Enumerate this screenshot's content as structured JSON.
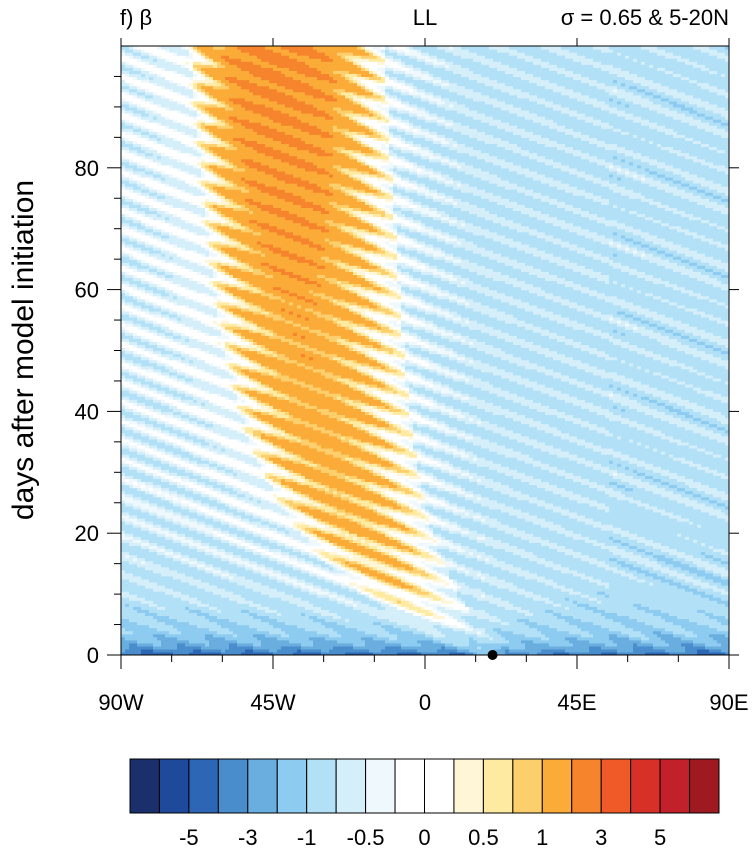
{
  "chart_data": {
    "type": "heatmap",
    "panel_label": "f) β",
    "center_title": "LL",
    "right_title": "σ  = 0.65 & 5-20N",
    "ylabel": "days after model initiation",
    "xlabel": "",
    "x_ticks": [
      "90W",
      "45W",
      "0",
      "45E",
      "90E"
    ],
    "x_tick_values": [
      -90,
      -45,
      0,
      45,
      90
    ],
    "y_ticks": [
      "0",
      "20",
      "40",
      "60",
      "80"
    ],
    "y_tick_values": [
      0,
      20,
      40,
      60,
      80
    ],
    "xlim": [
      -90,
      90
    ],
    "ylim": [
      0,
      100
    ],
    "contour_levels": [
      -7,
      -6,
      -5,
      -4,
      -3,
      -2,
      -1,
      -0.5,
      -0.25,
      0,
      0.25,
      0.5,
      0.75,
      1,
      2,
      3,
      4,
      5,
      6,
      7
    ],
    "colorbar_labels": [
      "-5",
      "-3",
      "-1",
      "-0.5",
      "0",
      "0.5",
      "1",
      "3",
      "5"
    ],
    "colorbar_colors": [
      "#1a2f6b",
      "#1f4a9b",
      "#2d66b5",
      "#4a8dcc",
      "#6aaee0",
      "#8ecbf0",
      "#b2e0f6",
      "#d4eefa",
      "#eef8fd",
      "#ffffff",
      "#ffffff",
      "#fff6d8",
      "#feeaa0",
      "#fdcf6c",
      "#fbab38",
      "#f6842c",
      "#ef5a28",
      "#d73027",
      "#c2202a",
      "#9e1a20"
    ],
    "colors": {
      "strong_negative": "#2d66b5",
      "negative": "#6aaee0",
      "weak_negative": "#8ecbf0",
      "neutral": "#ffffff",
      "weak_positive": "#fdcf6c",
      "positive": "#fbab38",
      "strong_positive": "#f6842c"
    },
    "origin_marker": {
      "x": 20,
      "y": 0
    },
    "grid": false
  }
}
